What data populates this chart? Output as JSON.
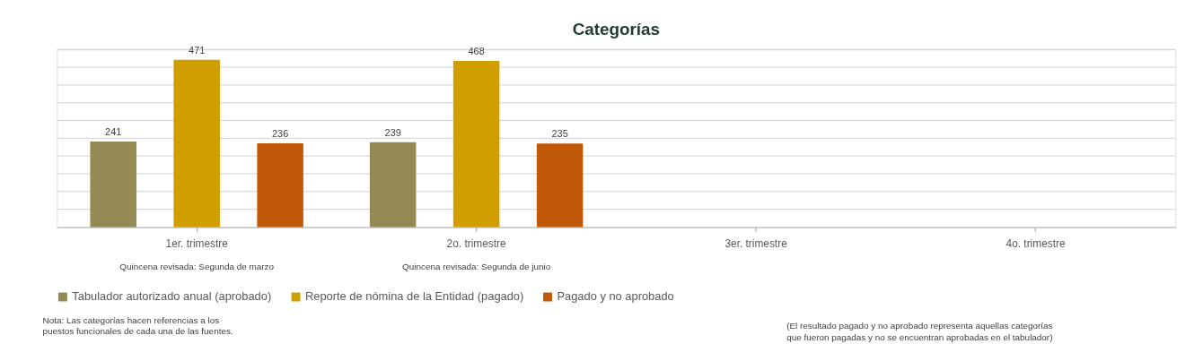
{
  "chart_data": {
    "type": "bar",
    "title": "Categorías",
    "categories": [
      "1er. trimestre",
      "2o. trimestre",
      "3er. trimestre",
      "4o. trimestre"
    ],
    "series": [
      {
        "name": "Tabulador autorizado anual (aprobado)",
        "color": "#948a54",
        "values": [
          241,
          239,
          null,
          null
        ]
      },
      {
        "name": "Reporte de nómina de la Entidad (pagado)",
        "color": "#d19e00",
        "values": [
          471,
          468,
          null,
          null
        ]
      },
      {
        "name": "Pagado y no aprobado",
        "color": "#c0590a",
        "values": [
          236,
          235,
          null,
          null
        ]
      }
    ],
    "ylim": [
      0,
      500
    ],
    "yticks": [
      {
        "value": 0,
        "label": null
      },
      {
        "value": 50,
        "label": null
      },
      {
        "value": 100,
        "label": null
      },
      {
        "value": 150,
        "label": null
      },
      {
        "value": 200,
        "label": null
      },
      {
        "value": 250,
        "label": null
      },
      {
        "value": 300,
        "label": null
      },
      {
        "value": 350,
        "label": null
      },
      {
        "value": 400,
        "label": null
      },
      {
        "value": 450,
        "label": null
      },
      {
        "value": 500,
        "label": null
      }
    ],
    "tick_labels": "x",
    "grid": "y",
    "legend": "bottom",
    "data_labels": true,
    "annotations": [
      "Quincena revisada: Segunda de marzo",
      "Quincena revisada: Segunda de junio",
      "Nota: Las categorías hacen referencias a los puestos funcionales de cada una de las fuentes.",
      "(El resultado pagado y no aprobado representa aquellas categorías que fueron pagadas y no se encuentran aprobadas en el tabulador)"
    ]
  }
}
